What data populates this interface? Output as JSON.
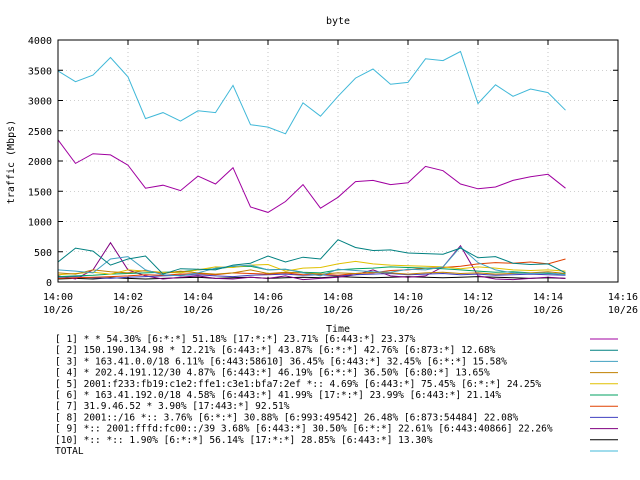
{
  "chart_data": {
    "type": "line",
    "title": "byte",
    "xlabel": "Time",
    "ylabel": "traffic (Mbps)",
    "ylim": [
      0,
      4000
    ],
    "yticks": [
      0,
      500,
      1000,
      1500,
      2000,
      2500,
      3000,
      3500,
      4000
    ],
    "ytick_labels": [
      "0",
      "500",
      "1000",
      "1500",
      "2000",
      "2500",
      "3000",
      "3500",
      "4000"
    ],
    "xlim": [
      0,
      16
    ],
    "xticks": [
      0,
      2,
      4,
      6,
      8,
      10,
      12,
      14,
      16
    ],
    "xtick_labels": [
      [
        "14:00",
        "10/26"
      ],
      [
        "14:02",
        "10/26"
      ],
      [
        "14:04",
        "10/26"
      ],
      [
        "14:06",
        "10/26"
      ],
      [
        "14:08",
        "10/26"
      ],
      [
        "14:10",
        "10/26"
      ],
      [
        "14:12",
        "10/26"
      ],
      [
        "14:14",
        "10/26"
      ],
      [
        "14:16",
        "10/26"
      ]
    ],
    "x": [
      0,
      0.5,
      1,
      1.5,
      2,
      2.5,
      3,
      3.5,
      4,
      4.5,
      5,
      5.5,
      6,
      6.5,
      7,
      7.5,
      8,
      8.5,
      9,
      9.5,
      10,
      10.5,
      11,
      11.5,
      12,
      12.5,
      13,
      13.5,
      14,
      14.5
    ],
    "grid": true,
    "legend_position": "bottom",
    "series": [
      {
        "name": "[ 1] * * 54.30%  [6:*:*] 51.18% [17:*:*] 23.71% [6:443:*] 23.37%",
        "color": "#a000a0",
        "values": [
          2350,
          1960,
          2120,
          2100,
          1930,
          1550,
          1600,
          1510,
          1750,
          1620,
          1890,
          1240,
          1150,
          1330,
          1610,
          1220,
          1400,
          1660,
          1680,
          1610,
          1640,
          1910,
          1840,
          1620,
          1540,
          1570,
          1680,
          1740,
          1780,
          1550
        ]
      },
      {
        "name": "[ 2] 150.190.134.98 * 12.21%  [6:443:*] 43.87% [6:*:*] 42.76% [6:873:*] 12.68%",
        "color": "#008080",
        "values": [
          330,
          560,
          510,
          280,
          380,
          430,
          130,
          220,
          210,
          200,
          280,
          310,
          430,
          330,
          410,
          380,
          700,
          570,
          520,
          530,
          480,
          470,
          460,
          560,
          400,
          420,
          310,
          290,
          300,
          150
        ]
      },
      {
        "name": "[ 3] * 163.41.0.0/18 6.11%  [6:443:58610] 36.45% [6:443:*] 32.45% [6:*:*] 15.58%",
        "color": "#40a0c0",
        "values": [
          200,
          180,
          150,
          380,
          420,
          200,
          120,
          100,
          150,
          230,
          260,
          280,
          200,
          210,
          150,
          100,
          210,
          190,
          170,
          160,
          210,
          200,
          250,
          580,
          320,
          200,
          150,
          140,
          150,
          120
        ]
      },
      {
        "name": "[ 4] * 202.4.191.12/30 4.87%  [6:443:*] 46.19% [6:*:*] 36.50% [6:80:*] 13.65%",
        "color": "#c08000",
        "values": [
          150,
          130,
          200,
          170,
          150,
          190,
          140,
          180,
          150,
          130,
          150,
          200,
          140,
          160,
          150,
          130,
          150,
          140,
          160,
          150,
          130,
          150,
          160,
          140,
          150,
          130,
          140,
          150,
          170,
          140
        ]
      },
      {
        "name": "[ 5] 2001:f233:fb19:c1e2:ffe1:c3e1:bfa7:2ef *:: 4.69%  [6:443:*] 75.45% [6:*:*] 24.25%",
        "color": "#e0c000",
        "values": [
          120,
          140,
          160,
          130,
          200,
          180,
          160,
          150,
          200,
          250,
          240,
          280,
          290,
          180,
          230,
          240,
          300,
          340,
          300,
          280,
          270,
          260,
          250,
          220,
          250,
          230,
          200,
          190,
          200,
          180
        ]
      },
      {
        "name": "[ 6] * 163.41.192.0/18 4.58%  [6:443:*] 41.99% [17:*:*] 23.99% [6:443:*] 21.14%",
        "color": "#00a060",
        "values": [
          90,
          100,
          110,
          130,
          140,
          150,
          160,
          170,
          200,
          220,
          250,
          260,
          200,
          210,
          160,
          150,
          200,
          220,
          230,
          250,
          240,
          230,
          220,
          200,
          180,
          160,
          170,
          150,
          140,
          130
        ]
      },
      {
        "name": "[ 7] 31.9.46.52 * 3.90%  [17:443:*] 92.51%",
        "color": "#e04000",
        "values": [
          60,
          70,
          80,
          90,
          100,
          120,
          110,
          130,
          140,
          120,
          150,
          140,
          130,
          150,
          120,
          130,
          110,
          140,
          150,
          190,
          200,
          230,
          240,
          260,
          300,
          320,
          310,
          330,
          300,
          380
        ]
      },
      {
        "name": "[ 8] 2001::/16 *:: 3.76%  [6:*:*] 30.88% [6:993:49542] 26.48% [6:873:54484] 22.08%",
        "color": "#4040c0",
        "values": [
          80,
          90,
          70,
          60,
          80,
          90,
          100,
          110,
          120,
          100,
          90,
          110,
          120,
          130,
          110,
          120,
          100,
          120,
          130,
          140,
          120,
          130,
          140,
          120,
          130,
          110,
          120,
          130,
          120,
          110
        ]
      },
      {
        "name": "[ 9] *:: 2001:fffd:fc00::/39 3.68%  [6:443:*] 30.50% [6:*:*] 22.61% [6:443:40866] 22.26%",
        "color": "#800080",
        "values": [
          100,
          50,
          200,
          650,
          200,
          100,
          50,
          80,
          100,
          60,
          50,
          80,
          60,
          100,
          40,
          60,
          80,
          120,
          200,
          100,
          80,
          100,
          250,
          600,
          100,
          50,
          40,
          60,
          80,
          60
        ]
      },
      {
        "name": "[10] *:: *:: 1.90%  [6:*:*] 56.14% [17:*:*] 28.85% [6:443:*] 13.30%",
        "color": "#000000",
        "values": [
          50,
          60,
          50,
          70,
          60,
          50,
          60,
          70,
          80,
          60,
          70,
          80,
          60,
          70,
          80,
          70,
          90,
          80,
          70,
          80,
          90,
          80,
          70,
          80,
          90,
          80,
          70,
          60,
          70,
          60
        ]
      },
      {
        "name": "TOTAL",
        "color": "#40b8d8",
        "values": [
          3490,
          3310,
          3420,
          3710,
          3390,
          2700,
          2800,
          2660,
          2830,
          2800,
          3250,
          2600,
          2560,
          2450,
          2960,
          2740,
          3070,
          3370,
          3520,
          3270,
          3300,
          3690,
          3660,
          3810,
          2950,
          3260,
          3070,
          3190,
          3130,
          2840
        ]
      }
    ]
  }
}
